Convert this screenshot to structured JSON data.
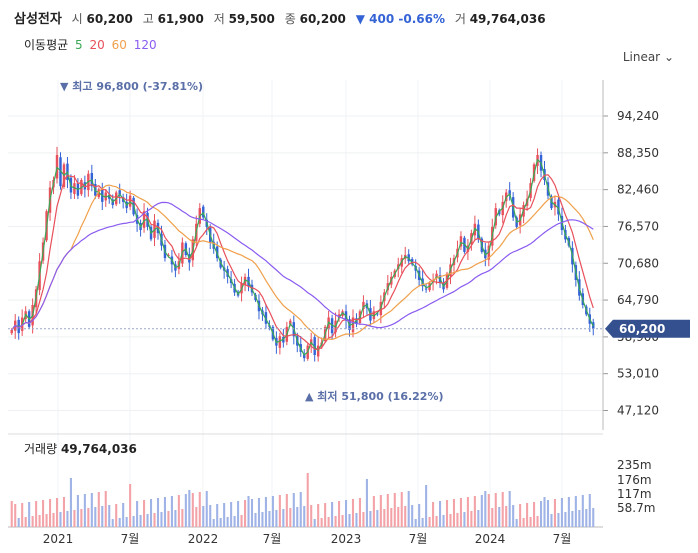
{
  "header": {
    "name": "삼성전자",
    "open_label": "시",
    "open": "60,200",
    "high_label": "고",
    "high": "61,900",
    "low_label": "저",
    "low": "59,500",
    "close_label": "종",
    "close": "60,200",
    "change": "▼ 400 -0.66%",
    "volume_label": "거",
    "volume": "49,764,036"
  },
  "ma_legend": {
    "label": "이동평균",
    "p5": "5",
    "p20": "20",
    "p60": "60",
    "p120": "120"
  },
  "scale_label": "Linear",
  "colors": {
    "ma5": "#3aa857",
    "ma20": "#e8505b",
    "ma60": "#f0a04b",
    "ma120": "#8a5cf0",
    "up": "#e8505b",
    "down": "#3463d6",
    "tag": "#34508f"
  },
  "chart_data": {
    "type": "candlestick",
    "y_axis_ticks": [
      "94,240",
      "88,350",
      "82,460",
      "76,570",
      "70,680",
      "64,790",
      "58,900",
      "53,010",
      "47,120"
    ],
    "y_axis_values": [
      94240,
      88350,
      82460,
      76570,
      70680,
      64790,
      58900,
      53010,
      47120
    ],
    "x_axis_ticks": [
      "2021",
      "7월",
      "2022",
      "7월",
      "2023",
      "7월",
      "2024",
      "7월"
    ],
    "current_price": "60,200",
    "annotation_high": "최고 96,800 (-37.81%)",
    "annotation_low": "최저 51,800 (16.22%)",
    "close_series": [
      60000,
      61500,
      59500,
      62000,
      63000,
      60500,
      64000,
      66500,
      71000,
      74000,
      79000,
      82800,
      84000,
      88000,
      83000,
      86500,
      84000,
      82000,
      83500,
      81500,
      84000,
      82500,
      85000,
      83000,
      81500,
      82500,
      80500,
      82000,
      81000,
      80000,
      82000,
      81500,
      80500,
      79500,
      81500,
      78500,
      77000,
      76000,
      79000,
      76500,
      74500,
      77500,
      75500,
      73500,
      71500,
      72000,
      70500,
      69500,
      71000,
      74000,
      72000,
      70800,
      74500,
      77000,
      79500,
      78000,
      76500,
      74000,
      73000,
      71500,
      70000,
      69500,
      68500,
      67500,
      66000,
      65500,
      67500,
      68500,
      67000,
      66000,
      64800,
      63000,
      62500,
      61000,
      60500,
      58500,
      57500,
      59000,
      58000,
      60500,
      61500,
      59000,
      57500,
      56500,
      55500,
      57500,
      58500,
      56000,
      57500,
      58000,
      60500,
      62000,
      59500,
      61500,
      62500,
      63000,
      61500,
      60000,
      62000,
      61000,
      63000,
      64500,
      63500,
      61500,
      63000,
      62500,
      64500,
      66000,
      67500,
      68500,
      69500,
      70500,
      71500,
      72000,
      71000,
      70500,
      69500,
      68000,
      67000,
      66500,
      67500,
      68000,
      69000,
      67500,
      66500,
      69000,
      70500,
      71500,
      73000,
      75000,
      72500,
      73500,
      75500,
      77000,
      74500,
      72500,
      71500,
      73500,
      76500,
      79500,
      78500,
      80500,
      82000,
      81500,
      78000,
      76500,
      78500,
      80000,
      81000,
      83500,
      86500,
      88000,
      85500,
      84000,
      81500,
      79500,
      80500,
      78500,
      76000,
      74500,
      73500,
      70500,
      68000,
      65500,
      64000,
      62500,
      61000,
      60200
    ],
    "volume_ticks": [
      "235m",
      "176m",
      "117m",
      "58.7m"
    ],
    "volume_title": "거래량",
    "volume_value": "49,764,036"
  }
}
